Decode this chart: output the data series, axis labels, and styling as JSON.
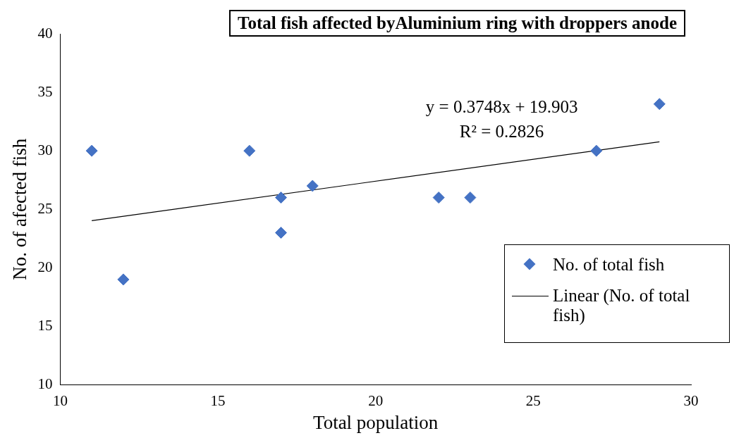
{
  "chart_data": {
    "type": "scatter",
    "title": "Total fish affected byAluminium ring with droppers anode",
    "xlabel": "Total population",
    "ylabel": "No. of afected fish",
    "xlim": [
      10,
      30
    ],
    "xticks": [
      10,
      15,
      20,
      25,
      30
    ],
    "ylim": [
      10,
      40
    ],
    "yticks": [
      10,
      15,
      20,
      25,
      30,
      35,
      40
    ],
    "legend": "right",
    "series": [
      {
        "name": "No. of total fish",
        "marker": "diamond",
        "color": "#4472c4",
        "x": [
          11,
          12,
          16,
          17,
          17,
          18,
          22,
          23,
          27,
          29
        ],
        "values": [
          30,
          19,
          30,
          26,
          23,
          27,
          26,
          26,
          30,
          34
        ]
      },
      {
        "name": "Linear (No. of total fish)",
        "type": "line",
        "marker": "none",
        "color": "#000000",
        "x": [
          11,
          29
        ],
        "values": [
          24.03,
          30.77
        ]
      }
    ],
    "annotations": [
      "y = 0.3748x + 19.903",
      "R² = 0.2826"
    ]
  }
}
